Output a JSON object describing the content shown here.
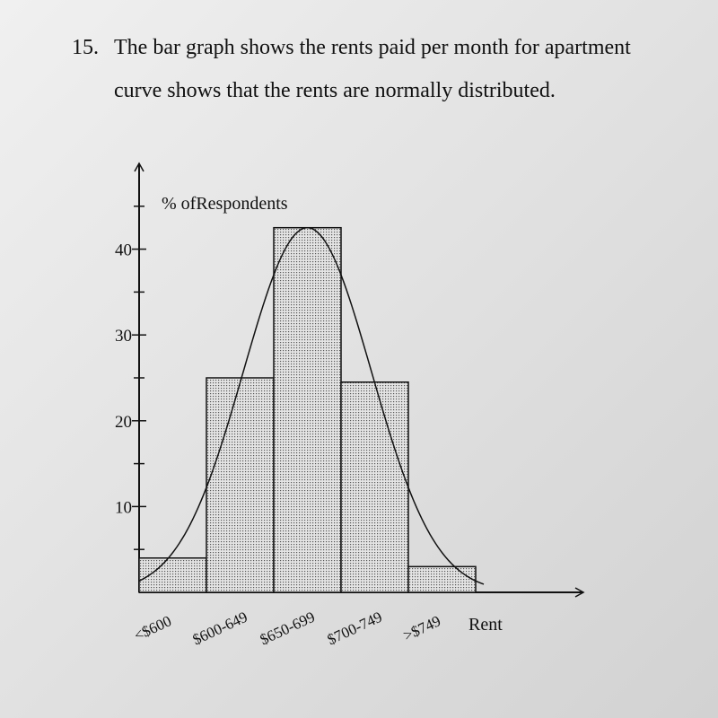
{
  "question": {
    "number": "15.",
    "lines": [
      "The bar graph shows the rents paid per month for apartment",
      "curve shows that the rents are normally distributed."
    ]
  },
  "chart_data": {
    "type": "bar",
    "y_label": "% ofRespondents",
    "x_label": "Rent",
    "categories": [
      "<$600",
      "$600-649",
      "$650-699",
      "$700-749",
      ">$749"
    ],
    "values": [
      4,
      25,
      42.5,
      24.5,
      3
    ],
    "color": "#c8c8c8",
    "ylim": [
      0,
      50
    ],
    "yticks": [
      10,
      20,
      30,
      40
    ],
    "minor_yticks": [
      5,
      15,
      25,
      35,
      45
    ],
    "normal_curve": true
  }
}
